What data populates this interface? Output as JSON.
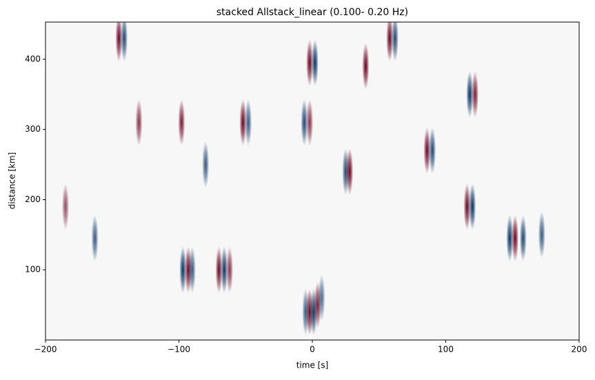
{
  "chart_data": {
    "type": "heatmap",
    "title": "stacked Allstack_linear (0.100- 0.20 Hz)",
    "xlabel": "time [s]",
    "ylabel": "distance [km]",
    "xlim": [
      -200,
      200
    ],
    "ylim": [
      0,
      453
    ],
    "xticks": [
      {
        "value": -200,
        "label": "−200"
      },
      {
        "value": -100,
        "label": "−100"
      },
      0,
      100,
      200
    ],
    "yticks": [
      100,
      200,
      300,
      400
    ],
    "background": "#f7f7f7",
    "negative_color": "#053061",
    "positive_color": "#67001f",
    "x": [
      -5,
      -2,
      1,
      4,
      7,
      -97,
      -93,
      -90,
      -70,
      -66,
      -62,
      -145,
      -141,
      -2,
      2,
      86,
      90,
      116,
      120,
      148,
      152,
      158,
      118,
      122,
      25,
      28,
      58,
      62,
      -52,
      -48,
      -98,
      -163,
      -185,
      40,
      -80,
      -130,
      172,
      -6,
      -2
    ],
    "y": [
      40,
      40,
      40,
      50,
      60,
      100,
      100,
      100,
      100,
      100,
      100,
      430,
      430,
      395,
      395,
      270,
      270,
      190,
      190,
      145,
      145,
      145,
      350,
      350,
      240,
      240,
      430,
      430,
      310,
      310,
      310,
      145,
      190,
      390,
      250,
      310,
      150,
      310,
      310
    ],
    "values": [
      -0.8,
      1,
      -1,
      0.9,
      -0.7,
      -1,
      1,
      -0.8,
      1,
      -1,
      0.8,
      1,
      -0.9,
      1,
      -1,
      1,
      -0.9,
      1,
      -1,
      -1,
      1,
      -0.9,
      -1,
      0.9,
      -0.9,
      1,
      1,
      -0.9,
      1,
      -0.8,
      0.9,
      -0.8,
      0.7,
      1,
      -0.8,
      0.8,
      -0.8,
      -0.9,
      0.8
    ]
  }
}
